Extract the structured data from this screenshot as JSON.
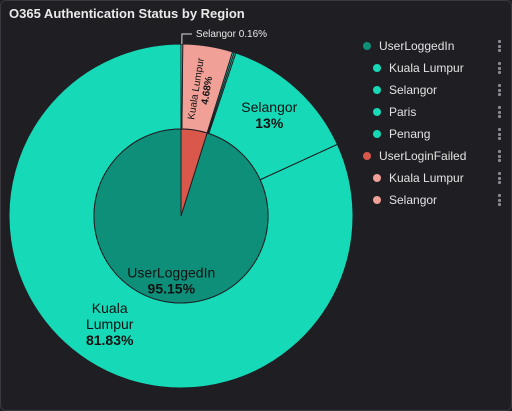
{
  "title": "O365 Authentication Status by Region",
  "chart_data": {
    "type": "pie",
    "variant": "nested-donut",
    "inner": [
      {
        "label": "UserLoggedIn",
        "value": 95.15,
        "display": "95.15%",
        "color": "#0e8f79"
      },
      {
        "label": "UserLoginFailed",
        "value": 4.85,
        "display": "",
        "color": "#d9574b"
      }
    ],
    "outer": [
      {
        "label": "Kuala Lumpur",
        "value": 81.83,
        "display": "81.83%",
        "color": "#16d9b8",
        "group": "UserLoggedIn"
      },
      {
        "label": "Selangor",
        "value": 13,
        "display": "13%",
        "color": "#16d9b8",
        "group": "UserLoggedIn"
      },
      {
        "label": "Paris",
        "value": 0.16,
        "display": "",
        "color": "#16d9b8",
        "group": "UserLoggedIn"
      },
      {
        "label": "Penang",
        "value": 0.16,
        "display": "",
        "color": "#16d9b8",
        "group": "UserLoggedIn"
      },
      {
        "label": "Kuala Lumpur",
        "value": 4.68,
        "display": "4.68%",
        "color": "#f1a097",
        "group": "UserLoginFailed"
      },
      {
        "label": "Selangor",
        "value": 0.16,
        "display": "0.16%",
        "color": "#f1a097",
        "group": "UserLoginFailed"
      }
    ],
    "legend_position": "right"
  },
  "legend": [
    {
      "label": "UserLoggedIn",
      "color": "#0e8f79",
      "level": 0
    },
    {
      "label": "Kuala Lumpur",
      "color": "#16d9b8",
      "level": 1
    },
    {
      "label": "Selangor",
      "color": "#16d9b8",
      "level": 1
    },
    {
      "label": "Paris",
      "color": "#16d9b8",
      "level": 1
    },
    {
      "label": "Penang",
      "color": "#16d9b8",
      "level": 1
    },
    {
      "label": "UserLoginFailed",
      "color": "#d9574b",
      "level": 0
    },
    {
      "label": "Kuala Lumpur",
      "color": "#f1a097",
      "level": 1
    },
    {
      "label": "Selangor",
      "color": "#f1a097",
      "level": 1
    }
  ],
  "icons": {
    "legend_menu": "kebab-icon"
  }
}
